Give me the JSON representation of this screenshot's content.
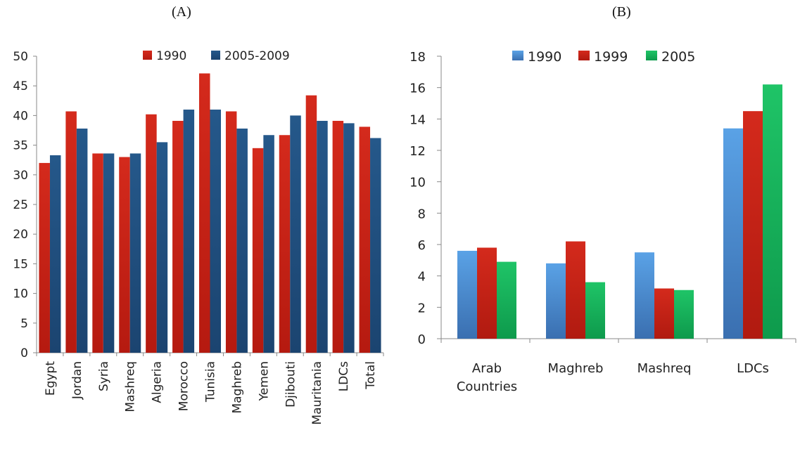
{
  "panels": {
    "a_label": "(A)",
    "b_label": "(B)"
  },
  "chart_data": [
    {
      "type": "bar",
      "categories": [
        "Egypt",
        "Jordan",
        "Syria",
        "Mashreq",
        "Algeria",
        "Morocco",
        "Tunisia",
        "Maghreb",
        "Yemen",
        "Djibouti",
        "Mauritania",
        "LDCs",
        "Total"
      ],
      "series": [
        {
          "name": "1990",
          "color": "#cc1f12",
          "values": [
            32.0,
            40.7,
            33.6,
            33.0,
            40.2,
            39.1,
            47.1,
            40.7,
            34.5,
            36.7,
            43.4,
            39.1,
            38.1
          ]
        },
        {
          "name": "2005-2009",
          "color": "#1f4e79",
          "values": [
            33.3,
            37.8,
            33.6,
            33.6,
            35.5,
            41.0,
            41.0,
            37.8,
            36.7,
            40.0,
            39.1,
            38.7,
            36.2
          ]
        }
      ],
      "ylim": [
        0,
        50
      ],
      "yticks": [
        "0",
        "5",
        "10",
        "15",
        "20",
        "25",
        "30",
        "35",
        "40",
        "45",
        "50"
      ],
      "legend_position": "top"
    },
    {
      "type": "bar",
      "categories": [
        "Arab Countries",
        "Maghreb",
        "Mashreq",
        "LDCs"
      ],
      "series": [
        {
          "name": "1990",
          "color": "#4a90d9",
          "values": [
            5.6,
            4.8,
            5.5,
            13.4
          ]
        },
        {
          "name": "1999",
          "color": "#cc1f12",
          "values": [
            5.8,
            6.2,
            3.2,
            14.5
          ]
        },
        {
          "name": "2005",
          "color": "#13b35a",
          "values": [
            4.9,
            3.6,
            3.1,
            16.2
          ]
        }
      ],
      "ylim": [
        0,
        18
      ],
      "yticks": [
        "0",
        "2",
        "4",
        "6",
        "8",
        "10",
        "12",
        "14",
        "16",
        "18"
      ],
      "legend_position": "top"
    }
  ]
}
